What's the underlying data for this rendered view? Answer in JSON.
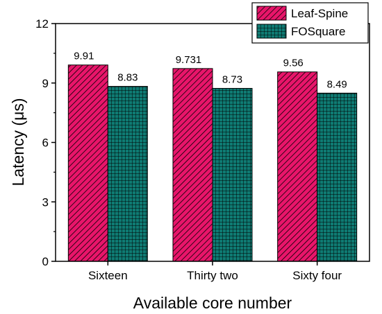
{
  "chart_data": {
    "type": "bar",
    "categories": [
      "Sixteen",
      "Thirty two",
      "Sixty four"
    ],
    "series": [
      {
        "name": "Leaf-Spine",
        "values": [
          9.91,
          9.731,
          9.56
        ],
        "value_labels": [
          "9.91",
          "9.731",
          "9.56"
        ],
        "color": "#e8156a",
        "pattern": "diagonal-hatch"
      },
      {
        "name": "FOSquare",
        "values": [
          8.83,
          8.73,
          8.49
        ],
        "value_labels": [
          "8.83",
          "8.73",
          "8.49"
        ],
        "color": "#0f7b73",
        "pattern": "grid-hatch"
      }
    ],
    "xlabel": "Available core number",
    "ylabel": "Latency (μs)",
    "ylim": [
      0,
      12
    ],
    "yticks": [
      0,
      3,
      6,
      9,
      12
    ],
    "ytick_labels": [
      "0",
      "3",
      "6",
      "9",
      "12"
    ],
    "grid": false,
    "legend_position": "top-right"
  }
}
